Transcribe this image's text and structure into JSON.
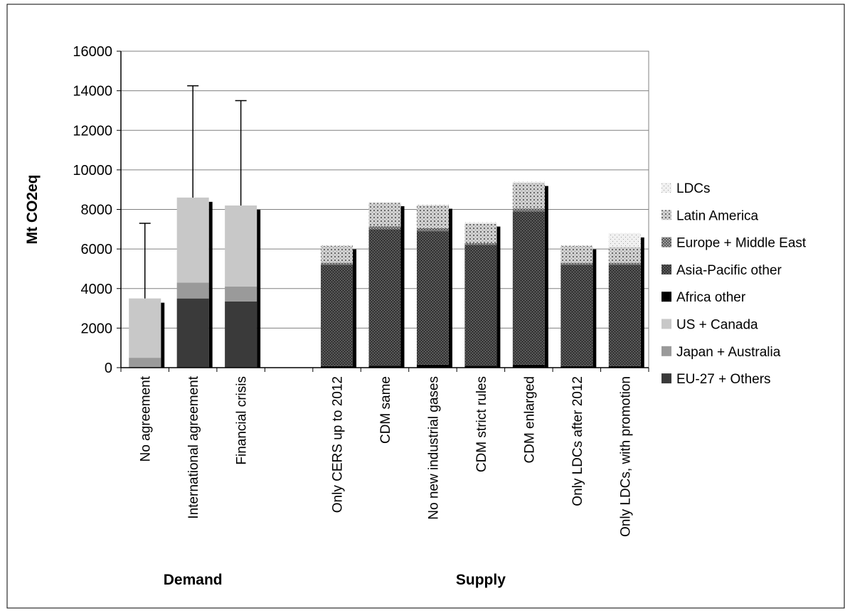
{
  "chart_data": {
    "type": "bar",
    "stacked": true,
    "title": "",
    "ylabel": "Mt CO2eq",
    "ylim": [
      0,
      16000
    ],
    "yticks": [
      0,
      2000,
      4000,
      6000,
      8000,
      10000,
      12000,
      14000,
      16000
    ],
    "grid": true,
    "legend_position": "right",
    "groups": [
      {
        "label": "Demand",
        "categories": [
          "No agreement",
          "International agreement",
          "Financial crisis"
        ]
      },
      {
        "label": "Supply",
        "categories": [
          "Only CERS up to 2012",
          "CDM same",
          "No new industrial gases",
          "CDM strict rules",
          "CDM enlarged",
          "Only LDCs after 2012",
          "Only LDCs, with promotion"
        ]
      }
    ],
    "categories": [
      "No agreement",
      "International agreement",
      "Financial crisis",
      "",
      "Only CERS up to 2012",
      "CDM same",
      "No new industrial gases",
      "CDM strict rules",
      "CDM enlarged",
      "Only LDCs after 2012",
      "Only LDCs, with promotion"
    ],
    "series": [
      {
        "name": "EU-27 + Others",
        "values": [
          0,
          3500,
          3350,
          0,
          0,
          0,
          0,
          0,
          0,
          0,
          0
        ]
      },
      {
        "name": "Japan + Australia",
        "values": [
          500,
          800,
          750,
          0,
          0,
          0,
          0,
          0,
          0,
          0,
          0
        ]
      },
      {
        "name": "US + Canada",
        "values": [
          3000,
          4300,
          4100,
          0,
          0,
          0,
          0,
          0,
          0,
          0,
          0
        ]
      },
      {
        "name": "Africa other",
        "values": [
          0,
          0,
          0,
          0,
          80,
          100,
          150,
          100,
          150,
          80,
          80
        ]
      },
      {
        "name": "Asia-Pacific other",
        "values": [
          0,
          0,
          0,
          0,
          5120,
          6900,
          6750,
          6100,
          7750,
          5120,
          5120
        ]
      },
      {
        "name": "Europe + Middle East",
        "values": [
          0,
          0,
          0,
          0,
          100,
          150,
          150,
          100,
          150,
          100,
          100
        ]
      },
      {
        "name": "Latin America",
        "values": [
          0,
          0,
          0,
          0,
          850,
          1180,
          1150,
          980,
          1300,
          850,
          800
        ]
      },
      {
        "name": "LDCs",
        "values": [
          0,
          0,
          0,
          0,
          50,
          50,
          50,
          70,
          50,
          50,
          700
        ]
      }
    ],
    "error_bars_upper": [
      7300,
      14250,
      13500,
      null,
      null,
      null,
      null,
      null,
      null,
      null,
      null
    ],
    "colors": {
      "EU-27 + Others": "#3a3a3a",
      "Japan + Australia": "#9a9a9a",
      "US + Canada": "#c8c8c8",
      "Africa other": "#000000",
      "Asia-Pacific other": "#4a4a4a",
      "Europe + Middle East": "#6a6a6a",
      "Latin America": "#b0b0b0",
      "LDCs": "#dcdcdc"
    },
    "legend_order": [
      "LDCs",
      "Latin America",
      "Europe + Middle East",
      "Asia-Pacific other",
      "Africa other",
      "US + Canada",
      "Japan + Australia",
      "EU-27 + Others"
    ]
  }
}
